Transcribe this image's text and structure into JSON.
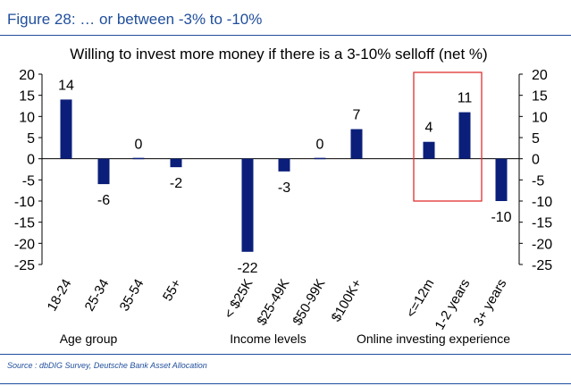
{
  "figure": {
    "label": "Figure 28: … or between -3% to -10%",
    "source": "Source : dbDIG Survey, Deutsche Bank Asset Allocation"
  },
  "colors": {
    "bar": "#0b1f7a",
    "frame": "#1f4e9c",
    "highlight_box": "#e03030",
    "text": "#000000"
  },
  "chart_data": {
    "type": "bar",
    "title": "Willing to invest more money if there is a 3-10% selloff (net %)",
    "categories": [
      "18-24",
      "25-34",
      "35-54",
      "55+",
      "< $25K",
      "$25-49K",
      "$50-99K",
      "$100K+",
      "<=12m",
      "1-2 years",
      "3+ years"
    ],
    "values": [
      14,
      -6,
      0,
      -2,
      -22,
      -3,
      0,
      7,
      4,
      11,
      -10
    ],
    "data_labels": [
      "14",
      "-6",
      "0",
      "-2",
      "-22",
      "-3",
      "0",
      "7",
      "4",
      "11",
      "-10"
    ],
    "groups": [
      {
        "name": "Age group",
        "categories": [
          "18-24",
          "25-34",
          "35-54",
          "55+"
        ]
      },
      {
        "name": "Income levels",
        "categories": [
          "< $25K",
          "$25-49K",
          "$50-99K",
          "$100K+"
        ]
      },
      {
        "name": "Online investing experience",
        "categories": [
          "<=12m",
          "1-2 years",
          "3+ years"
        ]
      }
    ],
    "ylim": [
      -25,
      20
    ],
    "yticks": [
      20,
      15,
      10,
      5,
      0,
      -5,
      -10,
      -15,
      -20,
      -25
    ],
    "secondary_yaxis": true,
    "highlighted": [
      "<=12m",
      "1-2 years"
    ],
    "grid": false,
    "xlabel": "",
    "ylabel": ""
  }
}
